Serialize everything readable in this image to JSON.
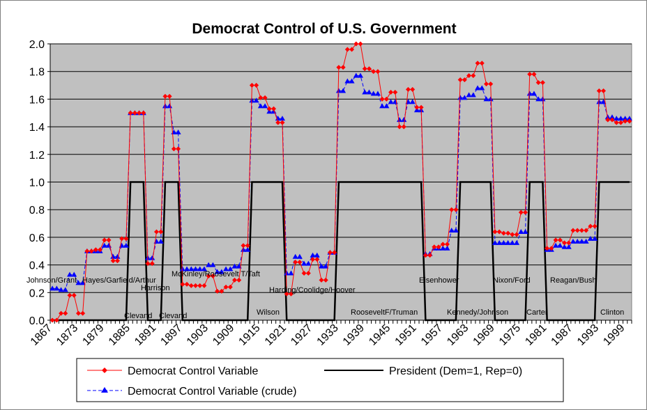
{
  "chart_data": {
    "type": "line",
    "title": "Democrat Control of U.S. Government",
    "xlabel": "",
    "ylabel": "",
    "ylim": [
      0,
      2.0
    ],
    "y_ticks": [
      "0.0",
      "0.2",
      "0.4",
      "0.6",
      "0.8",
      "1.0",
      "1.2",
      "1.4",
      "1.6",
      "1.8",
      "2.0"
    ],
    "x_range": [
      1867,
      2000
    ],
    "x_tick_labels": [
      "1867",
      "1873",
      "1879",
      "1885",
      "1891",
      "1897",
      "1903",
      "1909",
      "1915",
      "1921",
      "1927",
      "1933",
      "1939",
      "1945",
      "1951",
      "1957",
      "1963",
      "1969",
      "1975",
      "1981",
      "1987",
      "1993",
      "1999"
    ],
    "grid": true,
    "legend_position": "bottom",
    "plot_background": "#c0c0c0",
    "congress_start_years": [
      1867,
      1869,
      1871,
      1873,
      1875,
      1877,
      1879,
      1881,
      1883,
      1885,
      1887,
      1889,
      1891,
      1893,
      1895,
      1897,
      1899,
      1901,
      1903,
      1905,
      1907,
      1909,
      1911,
      1913,
      1915,
      1917,
      1919,
      1921,
      1923,
      1925,
      1927,
      1929,
      1931,
      1933,
      1935,
      1937,
      1939,
      1941,
      1943,
      1945,
      1947,
      1949,
      1951,
      1953,
      1955,
      1957,
      1959,
      1961,
      1963,
      1965,
      1967,
      1969,
      1971,
      1973,
      1975,
      1977,
      1979,
      1981,
      1983,
      1985,
      1987,
      1989,
      1991,
      1993,
      1995,
      1997,
      1999
    ],
    "series": [
      {
        "name": "Democrat Control Variable",
        "color": "#ff0000",
        "marker": "diamond",
        "line": "solid",
        "values": [
          0.0,
          0.05,
          0.18,
          0.05,
          0.5,
          0.51,
          0.58,
          0.43,
          0.59,
          1.5,
          1.5,
          0.41,
          0.64,
          1.62,
          1.24,
          0.26,
          0.25,
          0.25,
          0.32,
          0.21,
          0.24,
          0.29,
          0.54,
          1.7,
          1.61,
          1.53,
          1.43,
          0.19,
          0.42,
          0.34,
          0.44,
          0.29,
          0.49,
          1.83,
          1.96,
          2.0,
          1.82,
          1.8,
          1.6,
          1.65,
          1.4,
          1.67,
          1.54,
          0.47,
          0.53,
          0.55,
          0.8,
          1.74,
          1.77,
          1.86,
          1.71,
          0.64,
          0.63,
          0.62,
          0.78,
          1.78,
          1.72,
          0.52,
          0.58,
          0.56,
          0.65,
          0.65,
          0.68,
          1.66,
          1.45,
          1.43,
          1.44
        ]
      },
      {
        "name": "President (Dem=1, Rep=0)",
        "color": "#000000",
        "marker": "none",
        "line": "solid",
        "values": [
          0,
          0,
          0,
          0,
          0,
          0,
          0,
          0,
          0,
          1,
          1,
          0,
          0,
          1,
          1,
          0,
          0,
          0,
          0,
          0,
          0,
          0,
          0,
          1,
          1,
          1,
          1,
          0,
          0,
          0,
          0,
          0,
          0,
          1,
          1,
          1,
          1,
          1,
          1,
          1,
          1,
          1,
          1,
          0,
          0,
          0,
          0,
          1,
          1,
          1,
          1,
          0,
          0,
          0,
          0,
          1,
          1,
          0,
          0,
          0,
          0,
          0,
          0,
          1,
          1,
          1,
          1
        ]
      },
      {
        "name": "Democrat Control Variable (crude)",
        "color": "#0000ff",
        "marker": "triangle",
        "line": "dashed",
        "values": [
          0.23,
          0.22,
          0.33,
          0.27,
          0.5,
          0.5,
          0.54,
          0.46,
          0.54,
          1.5,
          1.5,
          0.45,
          0.57,
          1.55,
          1.36,
          0.37,
          0.37,
          0.37,
          0.4,
          0.35,
          0.37,
          0.39,
          0.51,
          1.59,
          1.55,
          1.51,
          1.46,
          0.34,
          0.46,
          0.41,
          0.47,
          0.39,
          0.49,
          1.66,
          1.73,
          1.77,
          1.65,
          1.64,
          1.55,
          1.58,
          1.45,
          1.58,
          1.52,
          0.48,
          0.52,
          0.52,
          0.65,
          1.61,
          1.63,
          1.68,
          1.6,
          0.56,
          0.56,
          0.56,
          0.64,
          1.64,
          1.6,
          0.51,
          0.54,
          0.53,
          0.57,
          0.57,
          0.59,
          1.58,
          1.47,
          1.46,
          1.46
        ]
      }
    ],
    "annotations": [
      "Johnson/Grant",
      "Hayes/Garfield/Arthur",
      "Harrison",
      "Clevand",
      "Clevand",
      "McKinley/Roosevelt T/Taft",
      "Wilson",
      "Harding/Coolidge/Hoover",
      "RooseveltF/Truman",
      "Eisenhower",
      "Kennedy/Johnson",
      "Nixon/Ford",
      "Carter",
      "Reagan/Bush",
      "Clinton"
    ]
  }
}
